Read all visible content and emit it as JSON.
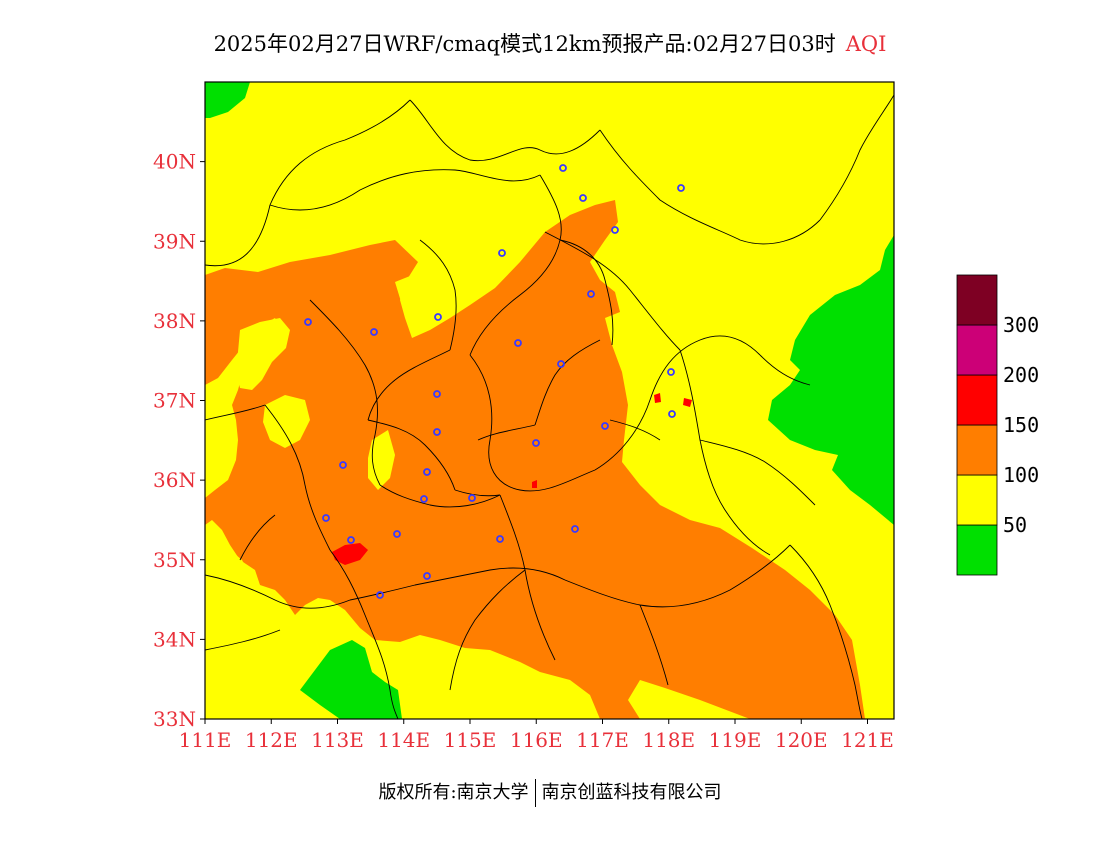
{
  "title": {
    "main": "2025年02月27日WRF/cmaq模式12km预报产品:02月27日03时",
    "variable": "AQI"
  },
  "axes": {
    "lat_ticks": [
      "33N",
      "34N",
      "35N",
      "36N",
      "37N",
      "38N",
      "39N",
      "40N"
    ],
    "lon_ticks": [
      "111E",
      "112E",
      "113E",
      "114E",
      "115E",
      "116E",
      "117E",
      "118E",
      "119E",
      "120E",
      "121E"
    ],
    "tick_color": "#e8303a",
    "lon_range": [
      111,
      121.4
    ],
    "lat_range": [
      33,
      41
    ]
  },
  "legend": {
    "colors": [
      "#00e000",
      "#ffff00",
      "#ff7e00",
      "#ff0000",
      "#cc0077",
      "#7e0023"
    ],
    "labels": [
      "50",
      "100",
      "150",
      "200",
      "300"
    ]
  },
  "colors": {
    "good": "#00e000",
    "moderate": "#ffff00",
    "unhealthy_sensitive": "#ff7e00",
    "unhealthy": "#ff0000",
    "city_marker": "#3a3aff"
  },
  "footer": {
    "left": "版权所有:南京大学",
    "right": "南京创蓝科技有限公司"
  }
}
